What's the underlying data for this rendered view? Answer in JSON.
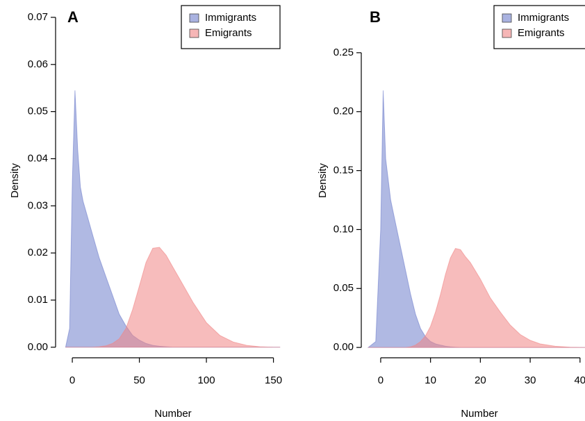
{
  "chart_data": [
    {
      "type": "area",
      "panel_label": "A",
      "xlabel": "Number",
      "ylabel": "Density",
      "legend": "topright",
      "x": [
        -5,
        -2,
        0,
        2,
        4,
        6,
        8,
        10,
        15,
        20,
        25,
        30,
        35,
        40,
        45,
        50,
        55,
        60,
        65,
        70,
        75,
        80,
        90,
        100,
        110,
        120,
        130,
        140,
        150,
        155
      ],
      "series": [
        {
          "name": "Immigrants",
          "color": "#6f7fcc",
          "values": [
            0,
            0.004,
            0.035,
            0.0545,
            0.042,
            0.034,
            0.031,
            0.029,
            0.024,
            0.019,
            0.015,
            0.011,
            0.007,
            0.0045,
            0.0025,
            0.0015,
            0.0008,
            0.0004,
            0.0002,
            0.0001,
            0,
            0,
            0,
            0,
            0,
            0,
            0,
            0,
            0,
            0
          ]
        },
        {
          "name": "Emigrants",
          "color": "#f08585",
          "values": [
            0,
            0,
            0,
            0,
            0,
            0,
            0,
            0,
            0,
            0.0001,
            0.0003,
            0.0008,
            0.0018,
            0.004,
            0.008,
            0.013,
            0.018,
            0.021,
            0.0212,
            0.0195,
            0.017,
            0.0145,
            0.0095,
            0.0052,
            0.0025,
            0.0011,
            0.0004,
            0.0001,
            0,
            0
          ]
        }
      ],
      "xlim": [
        -4.7,
        155.4
      ],
      "ylim": [
        -0.0018,
        0.0725
      ],
      "xticks": [
        0,
        50,
        100,
        150
      ],
      "yticks": [
        {
          "value": 0,
          "label": "0.00"
        },
        0.01,
        0.02,
        0.03,
        0.04,
        0.05,
        0.06,
        0.07
      ]
    },
    {
      "type": "area",
      "panel_label": "B",
      "xlabel": "Number",
      "ylabel": "Density",
      "legend": "topright",
      "x": [
        -2.5,
        -1,
        0,
        0.5,
        1,
        2,
        3,
        4,
        5,
        6,
        7,
        8,
        9,
        10,
        11,
        12,
        13,
        14,
        15,
        16,
        17,
        18,
        20,
        22,
        24,
        26,
        28,
        30,
        32,
        35,
        38,
        41
      ],
      "series": [
        {
          "name": "Immigrants",
          "color": "#6f7fcc",
          "values": [
            0,
            0.005,
            0.1,
            0.218,
            0.16,
            0.125,
            0.105,
            0.085,
            0.065,
            0.045,
            0.028,
            0.016,
            0.009,
            0.005,
            0.003,
            0.002,
            0.001,
            0.0005,
            0.0002,
            0,
            0,
            0,
            0,
            0,
            0,
            0,
            0,
            0,
            0,
            0,
            0,
            0
          ]
        },
        {
          "name": "Emigrants",
          "color": "#f08585",
          "values": [
            0,
            0,
            0,
            0,
            0,
            0,
            0,
            0,
            0,
            0.0005,
            0.002,
            0.005,
            0.01,
            0.018,
            0.03,
            0.045,
            0.062,
            0.076,
            0.084,
            0.083,
            0.077,
            0.072,
            0.058,
            0.042,
            0.03,
            0.019,
            0.011,
            0.006,
            0.003,
            0.001,
            0.0002,
            0
          ]
        }
      ],
      "xlim": [
        -2.5,
        41
      ],
      "ylim": [
        -0.007,
        0.29
      ],
      "xticks": [
        0,
        10,
        20,
        30,
        40
      ],
      "yticks": [
        {
          "value": 0,
          "label": "0.00"
        },
        0.05,
        {
          "value": 0.1,
          "label": "0.10"
        },
        0.15,
        {
          "value": 0.2,
          "label": "0.20"
        },
        0.25
      ]
    }
  ]
}
